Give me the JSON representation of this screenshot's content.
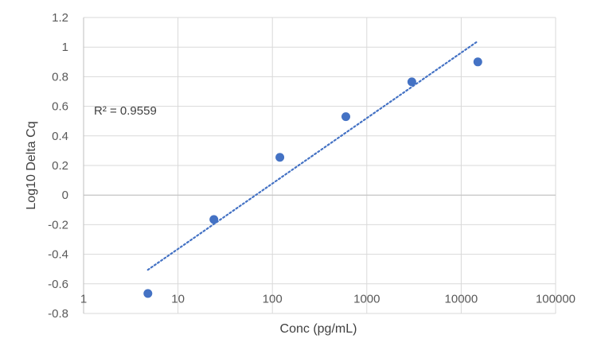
{
  "chart_data": {
    "type": "scatter",
    "title": "",
    "xlabel": "Conc (pg/mL)",
    "ylabel": "Log10 Delta Cq",
    "x_scale": "log",
    "xlim": [
      1,
      100000
    ],
    "ylim": [
      -0.8,
      1.2
    ],
    "x_ticks": [
      1,
      10,
      100,
      1000,
      10000,
      100000
    ],
    "x_tick_labels": [
      "1",
      "10",
      "100",
      "1000",
      "10000",
      "100000"
    ],
    "y_ticks": [
      -0.8,
      -0.6,
      -0.4,
      -0.2,
      0,
      0.2,
      0.4,
      0.6,
      0.8,
      1,
      1.2
    ],
    "y_tick_labels": [
      "-0.8",
      "-0.6",
      "-0.4",
      "-0.2",
      "0",
      "0.2",
      "0.4",
      "0.6",
      "0.8",
      "1",
      "1.2"
    ],
    "grid": true,
    "series": [
      {
        "color": "#4472C4",
        "x": [
          4.8,
          24,
          120,
          600,
          3000,
          15000
        ],
        "y": [
          -0.665,
          -0.165,
          0.255,
          0.53,
          0.765,
          0.9
        ]
      }
    ],
    "trendline": {
      "type": "linear-on-log-x",
      "style": "dotted",
      "color": "#4472C4",
      "x_start": 4.8,
      "x_end": 15000,
      "y_start": -0.505,
      "y_end": 1.04
    },
    "annotation": "R² = 0.9559",
    "axis_color": "#bfbfbf",
    "grid_color": "#d9d9d9"
  }
}
